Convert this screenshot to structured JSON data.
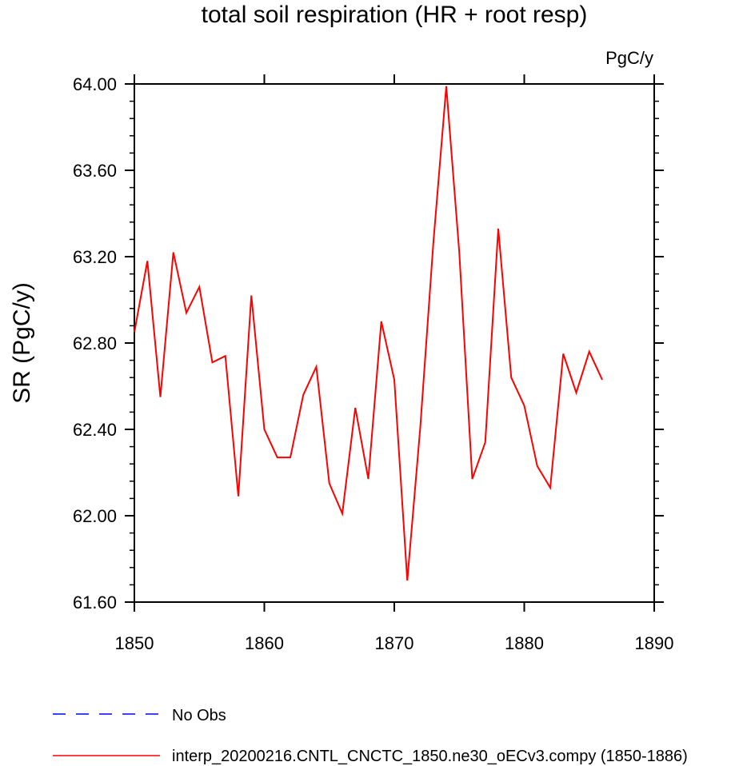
{
  "chart_data": {
    "type": "line",
    "title": "total soil respiration (HR + root resp)",
    "units": "PgC/y",
    "ylabel": "SR  (PgC/y)",
    "xlabel": "",
    "xlim": [
      1850,
      1890
    ],
    "ylim": [
      61.6,
      64.0
    ],
    "x_ticks": [
      "1850",
      "1860",
      "1870",
      "1880",
      "1890"
    ],
    "y_ticks": [
      "61.60",
      "62.00",
      "62.40",
      "62.80",
      "63.20",
      "63.60",
      "64.00"
    ],
    "grid": false,
    "legend_position": "bottom",
    "series": [
      {
        "name": "interp_20200216.CNTL_CNCTC_1850.ne30_oECv3.compy (1850-1886)",
        "color": "#ff0000",
        "line_style": "solid",
        "x": [
          1850,
          1851,
          1852,
          1853,
          1854,
          1855,
          1856,
          1857,
          1858,
          1859,
          1860,
          1861,
          1862,
          1863,
          1864,
          1865,
          1866,
          1867,
          1868,
          1869,
          1870,
          1871,
          1872,
          1873,
          1874,
          1875,
          1876,
          1877,
          1878,
          1879,
          1880,
          1881,
          1882,
          1883,
          1884,
          1885,
          1886
        ],
        "values": [
          62.85,
          63.18,
          62.55,
          63.22,
          62.94,
          63.06,
          62.71,
          62.74,
          62.09,
          63.02,
          62.4,
          62.27,
          62.27,
          62.56,
          62.69,
          62.15,
          62.01,
          62.5,
          62.17,
          62.9,
          62.63,
          61.7,
          62.41,
          63.26,
          63.99,
          63.22,
          62.17,
          62.34,
          63.33,
          62.64,
          62.51,
          62.23,
          62.13,
          62.75,
          62.57,
          62.76,
          62.63
        ]
      },
      {
        "name": "No Obs",
        "color": "#0000ff",
        "line_style": "dashed",
        "x": [],
        "values": []
      }
    ]
  }
}
